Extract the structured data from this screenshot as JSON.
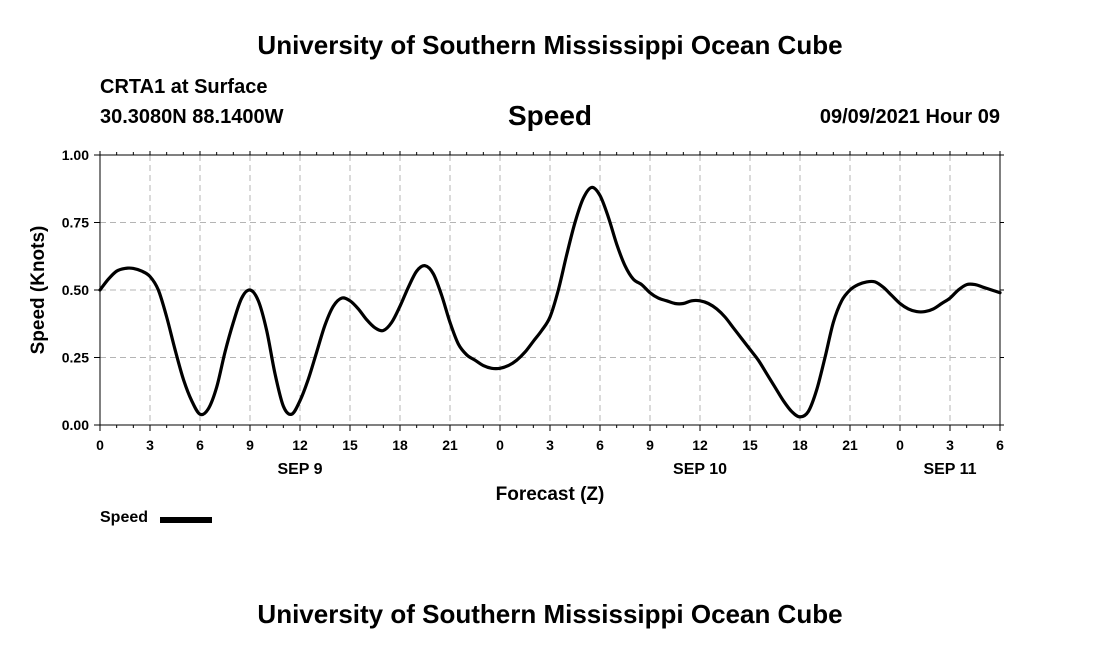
{
  "header": {
    "title": "University of Southern Mississippi Ocean Cube",
    "station": "CRTA1 at Surface",
    "coords": "30.3080N  88.1400W",
    "variable": "Speed",
    "datetime": "09/09/2021 Hour 09"
  },
  "footer": {
    "title": "University of Southern Mississippi Ocean Cube"
  },
  "legend": {
    "label": "Speed"
  },
  "chart_data": {
    "type": "line",
    "xlabel": "Forecast (Z)",
    "ylabel": "Speed (Knots)",
    "xlim": [
      0,
      54
    ],
    "ylim": [
      0,
      1
    ],
    "yticks": [
      "0.00",
      "0.25",
      "0.50",
      "0.75",
      "1.00"
    ],
    "xtick_labels": [
      "0",
      "3",
      "6",
      "9",
      "12",
      "15",
      "18",
      "21",
      "0",
      "3",
      "6",
      "9",
      "12",
      "15",
      "18",
      "21",
      "0",
      "3",
      "6"
    ],
    "day_labels": [
      {
        "label": "SEP 9",
        "hour": 12
      },
      {
        "label": "SEP 10",
        "hour": 36
      },
      {
        "label": "SEP 11",
        "hour": 51
      }
    ],
    "grid": true,
    "legend_position": "bottom-left",
    "series": [
      {
        "name": "Speed",
        "color": "#000000",
        "x": [
          0,
          0.5,
          1,
          1.5,
          2,
          2.5,
          3,
          3.5,
          4,
          4.5,
          5,
          5.5,
          6,
          6.5,
          7,
          7.5,
          8,
          8.5,
          9,
          9.5,
          10,
          10.5,
          11,
          11.5,
          12,
          12.5,
          13,
          13.5,
          14,
          14.5,
          15,
          15.5,
          16,
          16.5,
          17,
          17.5,
          18,
          18.5,
          19,
          19.5,
          20,
          20.5,
          21,
          21.5,
          22,
          22.5,
          23,
          23.5,
          24,
          24.5,
          25,
          25.5,
          26,
          26.5,
          27,
          27.5,
          28,
          28.5,
          29,
          29.5,
          30,
          30.5,
          31,
          31.5,
          32,
          32.5,
          33,
          33.5,
          34,
          34.5,
          35,
          35.5,
          36,
          36.5,
          37,
          37.5,
          38,
          38.5,
          39,
          39.5,
          40,
          40.5,
          41,
          41.5,
          42,
          42.5,
          43,
          43.5,
          44,
          44.5,
          45,
          45.5,
          46,
          46.5,
          47,
          47.5,
          48,
          48.5,
          49,
          49.5,
          50,
          50.5,
          51,
          51.5,
          52,
          52.5,
          53,
          53.5,
          54
        ],
        "values": [
          0.5,
          0.54,
          0.57,
          0.58,
          0.58,
          0.57,
          0.55,
          0.5,
          0.4,
          0.28,
          0.17,
          0.09,
          0.04,
          0.06,
          0.14,
          0.27,
          0.38,
          0.47,
          0.5,
          0.46,
          0.35,
          0.19,
          0.07,
          0.04,
          0.09,
          0.17,
          0.27,
          0.37,
          0.44,
          0.47,
          0.46,
          0.43,
          0.39,
          0.36,
          0.35,
          0.38,
          0.44,
          0.51,
          0.57,
          0.59,
          0.56,
          0.48,
          0.38,
          0.3,
          0.26,
          0.24,
          0.22,
          0.21,
          0.21,
          0.22,
          0.24,
          0.27,
          0.31,
          0.35,
          0.4,
          0.5,
          0.63,
          0.75,
          0.84,
          0.88,
          0.85,
          0.77,
          0.67,
          0.59,
          0.54,
          0.52,
          0.49,
          0.47,
          0.46,
          0.45,
          0.45,
          0.46,
          0.46,
          0.45,
          0.43,
          0.4,
          0.36,
          0.32,
          0.28,
          0.24,
          0.19,
          0.14,
          0.09,
          0.05,
          0.03,
          0.05,
          0.13,
          0.25,
          0.38,
          0.46,
          0.5,
          0.52,
          0.53,
          0.53,
          0.51,
          0.48,
          0.45,
          0.43,
          0.42,
          0.42,
          0.43,
          0.45,
          0.47,
          0.5,
          0.52,
          0.52,
          0.51,
          0.5,
          0.49
        ]
      }
    ]
  }
}
